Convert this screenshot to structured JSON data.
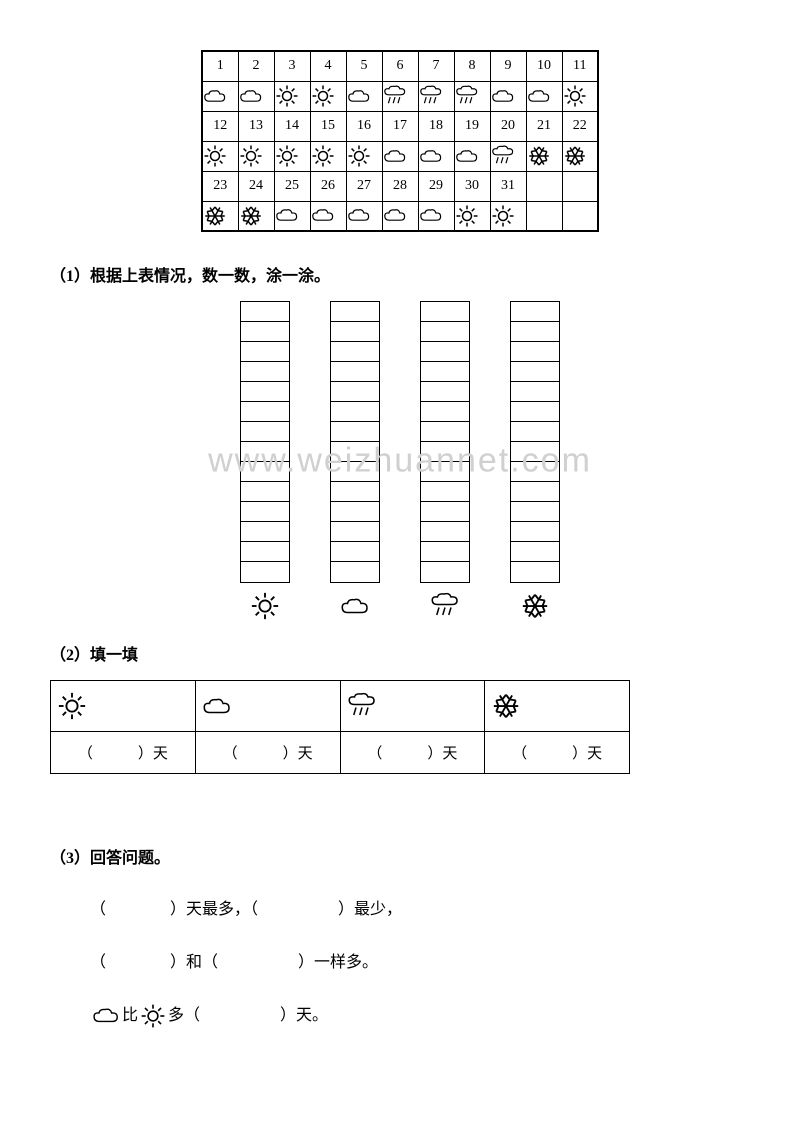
{
  "calendar": {
    "rows": [
      {
        "nums": [
          "1",
          "2",
          "3",
          "4",
          "5",
          "6",
          "7",
          "8",
          "9",
          "10",
          "11"
        ],
        "icons": [
          "cloud",
          "cloud",
          "sun",
          "sun",
          "cloud",
          "rain",
          "rain",
          "rain",
          "cloud",
          "cloud",
          "sun"
        ]
      },
      {
        "nums": [
          "12",
          "13",
          "14",
          "15",
          "16",
          "17",
          "18",
          "19",
          "20",
          "21",
          "22"
        ],
        "icons": [
          "sun",
          "sun",
          "sun",
          "sun",
          "sun",
          "cloud",
          "cloud",
          "cloud",
          "rain",
          "snow",
          "snow"
        ]
      },
      {
        "nums": [
          "23",
          "24",
          "25",
          "26",
          "27",
          "28",
          "29",
          "30",
          "31",
          "",
          ""
        ],
        "icons": [
          "snow",
          "snow",
          "cloud",
          "cloud",
          "cloud",
          "cloud",
          "cloud",
          "sun",
          "sun",
          "",
          ""
        ]
      }
    ]
  },
  "section1": {
    "title": "（1）根据上表情况，数一数，涂一涂。"
  },
  "bars": {
    "cells": 14,
    "icons": [
      "sun",
      "cloud",
      "rain",
      "snow"
    ]
  },
  "watermark": "www.weizhuannet.com",
  "section2": {
    "title": "（2）填一填",
    "headers_icons": [
      "sun",
      "cloud",
      "rain",
      "snow"
    ],
    "cell_text": "（　　　）天"
  },
  "section3": {
    "title": "（3）回答问题。",
    "line1a": "（　　　　）天最多，（　　　　　）最少，",
    "line2a": "（　　　　）和（　　　　　）一样多。",
    "line3_prefix": "",
    "line3_mid": "比",
    "line3_suffix": "多（　　　　　）天。"
  }
}
